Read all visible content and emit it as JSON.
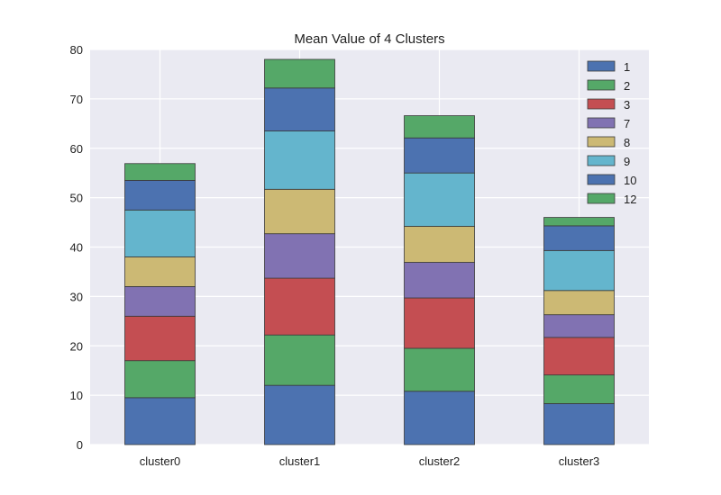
{
  "chart_data": {
    "type": "bar",
    "stacked": true,
    "title": "Mean Value of 4 Clusters",
    "xlabel": "",
    "ylabel": "",
    "categories": [
      "cluster0",
      "cluster1",
      "cluster2",
      "cluster3"
    ],
    "ylim": [
      0,
      80
    ],
    "yticks": [
      0,
      10,
      20,
      30,
      40,
      50,
      60,
      70,
      80
    ],
    "grid": true,
    "legend_position": "top-right",
    "series": [
      {
        "name": "1",
        "color": "#4c72b0",
        "values": [
          9.5,
          12.0,
          10.8,
          8.3
        ]
      },
      {
        "name": "2",
        "color": "#55a868",
        "values": [
          7.5,
          10.2,
          8.7,
          5.8
        ]
      },
      {
        "name": "3",
        "color": "#c44e52",
        "values": [
          9.0,
          11.5,
          10.2,
          7.6
        ]
      },
      {
        "name": "7",
        "color": "#8172b2",
        "values": [
          6.0,
          9.0,
          7.2,
          4.6
        ]
      },
      {
        "name": "8",
        "color": "#ccb974",
        "values": [
          6.0,
          9.0,
          7.3,
          4.9
        ]
      },
      {
        "name": "9",
        "color": "#64b5cd",
        "values": [
          9.5,
          11.8,
          10.8,
          8.1
        ]
      },
      {
        "name": "10",
        "color": "#4c72b0",
        "values": [
          6.0,
          8.7,
          7.1,
          5.0
        ]
      },
      {
        "name": "12",
        "color": "#55a868",
        "values": [
          3.4,
          5.8,
          4.5,
          1.7
        ]
      }
    ]
  }
}
